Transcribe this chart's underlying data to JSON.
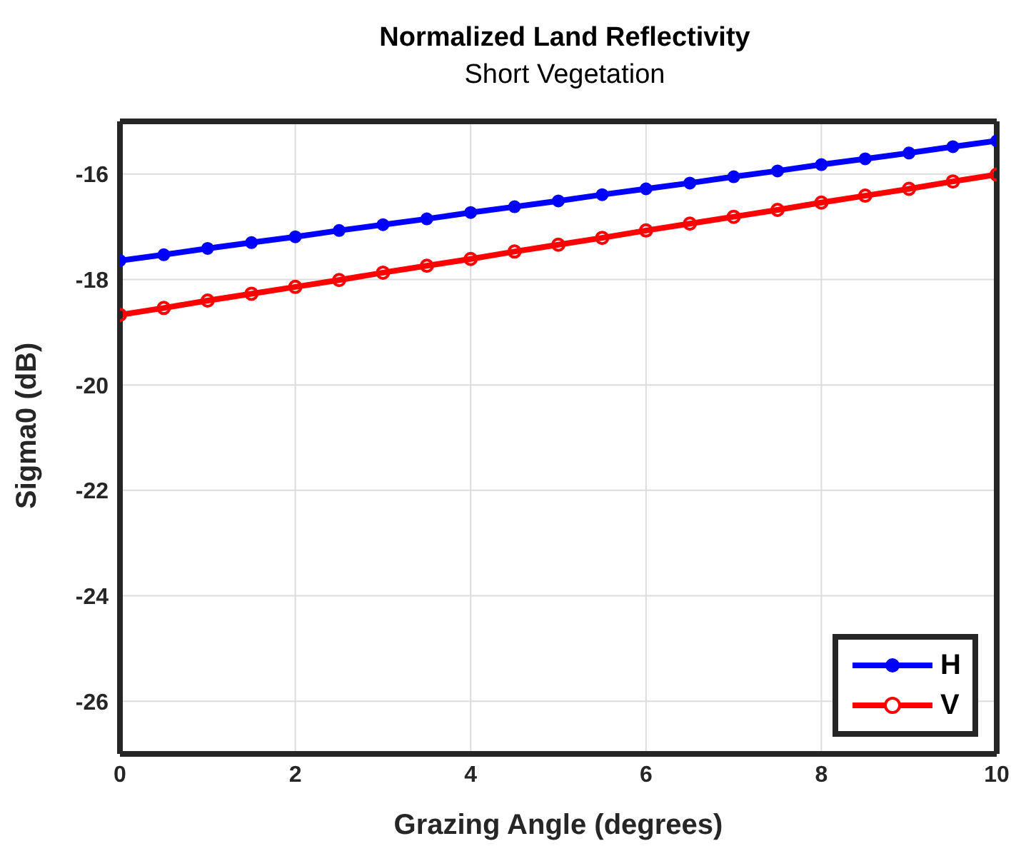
{
  "chart_data": {
    "type": "line",
    "title": "Normalized Land Reflectivity",
    "subtitle": "Short Vegetation",
    "xlabel": "Grazing Angle (degrees)",
    "ylabel": "Sigma0 (dB)",
    "x": [
      0,
      0.5,
      1,
      1.5,
      2,
      2.5,
      3,
      3.5,
      4,
      4.5,
      5,
      5.5,
      6,
      6.5,
      7,
      7.5,
      8,
      8.5,
      9,
      9.5,
      10
    ],
    "series": [
      {
        "name": "H",
        "color": "#0000ff",
        "marker": "circle",
        "values": [
          -17.64,
          -17.53,
          -17.41,
          -17.3,
          -17.19,
          -17.07,
          -16.96,
          -16.85,
          -16.73,
          -16.62,
          -16.51,
          -16.39,
          -16.28,
          -16.17,
          -16.05,
          -15.94,
          -15.82,
          -15.71,
          -15.6,
          -15.48,
          -15.37
        ]
      },
      {
        "name": "V",
        "color": "#ff0000",
        "marker": "open circle",
        "values": [
          -18.67,
          -18.54,
          -18.4,
          -18.27,
          -18.14,
          -18.01,
          -17.87,
          -17.74,
          -17.61,
          -17.47,
          -17.34,
          -17.21,
          -17.07,
          -16.94,
          -16.81,
          -16.68,
          -16.54,
          -16.41,
          -16.28,
          -16.14,
          -16.01
        ]
      }
    ],
    "xlim": [
      0,
      10
    ],
    "xticks": [
      0,
      2,
      4,
      6,
      8,
      10
    ],
    "ylim": [
      -27,
      -15
    ],
    "yticks": [
      -26,
      -24,
      -22,
      -20,
      -18,
      -16
    ],
    "grid": true,
    "legend": "bottom right",
    "line_style": "solid"
  }
}
